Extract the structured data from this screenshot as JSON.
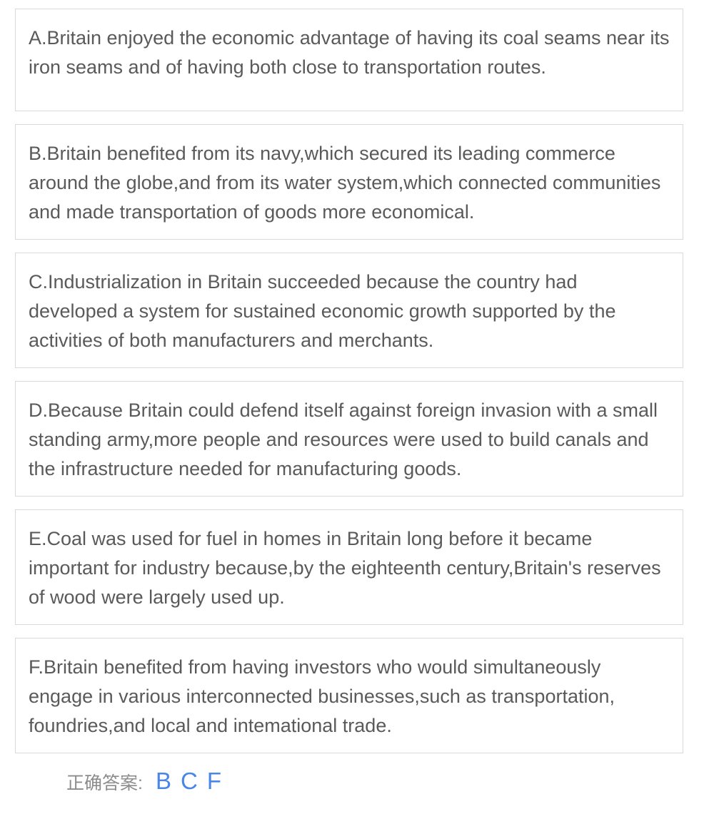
{
  "options": [
    {
      "letter": "A",
      "text": "A.Britain enjoyed the economic advantage of having its coal seams near its iron seams and of having both close to transportation routes."
    },
    {
      "letter": "B",
      "text": "B.Britain benefited from its navy,which secured its leading commerce around the globe,and from its water system,which connected communities and made transportation of goods more economical."
    },
    {
      "letter": "C",
      "text": "C.Industrialization in Britain succeeded because the country had developed a system for sustained economic growth supported by the activities of both manufacturers and merchants."
    },
    {
      "letter": "D",
      "text": "D.Because Britain could defend itself against foreign invasion with a small standing army,more people and resources were used to build canals and the infrastructure needed for manufacturing goods."
    },
    {
      "letter": "E",
      "text": "E.Coal was used for fuel in homes in Britain long before it became important for industry because,by the eighteenth century,Britain's reserves of wood were largely used up."
    },
    {
      "letter": "F",
      "text": "F.Britain benefited from having investors who would simultaneously engage in various interconnected businesses,such as transportation, foundries,and local and intemational trade."
    }
  ],
  "answer": {
    "label": "正确答案:",
    "values": [
      "B",
      "C",
      "F"
    ]
  },
  "colors": {
    "border": "#d9d9d9",
    "option_text": "#5a5a5a",
    "answer_label": "#8c8c8c",
    "answer_value": "#4a86e8"
  }
}
